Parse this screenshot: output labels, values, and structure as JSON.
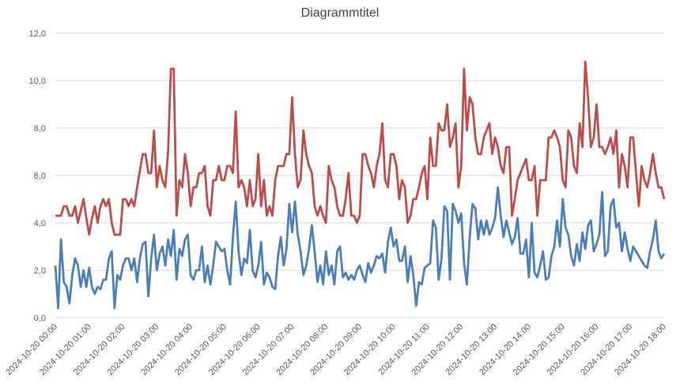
{
  "chart_data": {
    "type": "line",
    "title": "Diagrammtitel",
    "categories": [
      "2024-10-20 00:00",
      null,
      null,
      null,
      null,
      null,
      null,
      null,
      null,
      null,
      null,
      null,
      "2024-10-20 01:00",
      null,
      null,
      null,
      null,
      null,
      null,
      null,
      null,
      null,
      null,
      null,
      "2024-10-20 02:00",
      null,
      null,
      null,
      null,
      null,
      null,
      null,
      null,
      null,
      null,
      null,
      "2024-10-20 03:00",
      null,
      null,
      null,
      null,
      null,
      null,
      null,
      null,
      null,
      null,
      null,
      "2024-10-20 04:00",
      null,
      null,
      null,
      null,
      null,
      null,
      null,
      null,
      null,
      null,
      null,
      "2024-10-20 05:00",
      null,
      null,
      null,
      null,
      null,
      null,
      null,
      null,
      null,
      null,
      null,
      "2024-10-20 06:00",
      null,
      null,
      null,
      null,
      null,
      null,
      null,
      null,
      null,
      null,
      null,
      "2024-10-20 07:00",
      null,
      null,
      null,
      null,
      null,
      null,
      null,
      null,
      null,
      null,
      null,
      "2024-10-20 08:00",
      null,
      null,
      null,
      null,
      null,
      null,
      null,
      null,
      null,
      null,
      null,
      "2024-10-20 09:00",
      null,
      null,
      null,
      null,
      null,
      null,
      null,
      null,
      null,
      null,
      null,
      "2024-10-20 10:00",
      null,
      null,
      null,
      null,
      null,
      null,
      null,
      null,
      null,
      null,
      null,
      "2024-10-20 11:00",
      null,
      null,
      null,
      null,
      null,
      null,
      null,
      null,
      null,
      null,
      null,
      "2024-10-20 12:00",
      null,
      null,
      null,
      null,
      null,
      null,
      null,
      null,
      null,
      null,
      null,
      "2024-10-20 13:00",
      null,
      null,
      null,
      null,
      null,
      null,
      null,
      null,
      null,
      null,
      null,
      "2024-10-20 14:00",
      null,
      null,
      null,
      null,
      null,
      null,
      null,
      null,
      null,
      null,
      null,
      "2024-10-20 15:00",
      null,
      null,
      null,
      null,
      null,
      null,
      null,
      null,
      null,
      null,
      null,
      "2024-10-20 16:00",
      null,
      null,
      null,
      null,
      null,
      null,
      null,
      null,
      null,
      null,
      null,
      "2024-10-20 17:00",
      null,
      null,
      null,
      null,
      null,
      null,
      null,
      null,
      null,
      null,
      null,
      "2024-10-20 18:00"
    ],
    "series": [
      {
        "color": "#be4b48",
        "values": [
          4.3,
          4.3,
          4.3,
          4.7,
          4.7,
          4.3,
          4.3,
          4.7,
          4.0,
          4.5,
          5.0,
          4.2,
          3.5,
          4.2,
          4.7,
          4.0,
          4.7,
          5.0,
          4.7,
          5.0,
          4.0,
          3.5,
          3.5,
          3.5,
          5.0,
          5.0,
          4.7,
          5.0,
          4.7,
          5.5,
          6.2,
          6.9,
          6.9,
          6.1,
          6.1,
          7.9,
          5.5,
          6.4,
          5.8,
          5.5,
          7.0,
          10.5,
          10.5,
          4.3,
          5.8,
          5.5,
          6.9,
          6.1,
          4.7,
          5.5,
          5.5,
          6.1,
          6.1,
          6.4,
          4.7,
          4.3,
          5.8,
          5.8,
          6.4,
          5.8,
          5.8,
          6.4,
          6.4,
          6.1,
          8.7,
          5.5,
          5.8,
          5.5,
          4.7,
          5.8,
          4.7,
          5.0,
          6.9,
          4.7,
          5.8,
          4.3,
          4.7,
          4.3,
          5.8,
          6.4,
          6.4,
          6.4,
          6.9,
          6.9,
          9.3,
          6.9,
          5.5,
          5.8,
          7.9,
          6.9,
          6.4,
          6.1,
          4.7,
          4.3,
          4.7,
          4.3,
          4.0,
          6.4,
          5.8,
          5.5,
          4.7,
          4.3,
          4.3,
          5.0,
          6.1,
          4.3,
          4.3,
          4.0,
          4.3,
          6.9,
          6.9,
          6.4,
          6.1,
          5.5,
          6.4,
          6.9,
          8.2,
          5.8,
          5.5,
          6.9,
          6.9,
          6.4,
          5.0,
          5.8,
          5.5,
          4.0,
          4.3,
          5.0,
          5.0,
          5.5,
          6.1,
          6.4,
          5.0,
          7.6,
          6.4,
          6.4,
          8.2,
          7.9,
          7.9,
          9.0,
          7.2,
          7.6,
          8.2,
          5.5,
          6.4,
          10.5,
          7.9,
          9.3,
          9.0,
          7.6,
          6.9,
          6.9,
          7.6,
          7.9,
          8.2,
          6.9,
          7.6,
          7.2,
          6.4,
          6.1,
          7.2,
          7.2,
          4.3,
          5.0,
          5.8,
          6.1,
          6.4,
          6.7,
          5.8,
          5.8,
          6.4,
          4.3,
          5.8,
          5.8,
          5.8,
          7.6,
          7.6,
          7.9,
          7.6,
          7.2,
          5.8,
          5.5,
          7.9,
          7.6,
          6.4,
          6.1,
          8.2,
          7.2,
          10.8,
          9.3,
          7.2,
          7.6,
          9.0,
          7.2,
          7.2,
          6.9,
          7.2,
          7.6,
          6.9,
          7.9,
          5.5,
          6.9,
          6.4,
          5.5,
          7.6,
          7.6,
          6.1,
          4.7,
          6.4,
          5.8,
          5.5,
          6.1,
          6.9,
          6.1,
          5.5,
          5.5,
          5.0
        ]
      },
      {
        "color": "#4a7ebb",
        "values": [
          2.2,
          0.4,
          3.3,
          1.5,
          1.3,
          0.6,
          1.8,
          2.5,
          2.2,
          1.3,
          2.0,
          1.3,
          2.1,
          1.3,
          1.0,
          1.3,
          1.2,
          1.6,
          1.6,
          2.5,
          2.8,
          0.4,
          1.8,
          1.6,
          2.2,
          2.5,
          2.5,
          2.0,
          2.5,
          1.5,
          2.5,
          3.1,
          3.2,
          0.9,
          2.5,
          3.5,
          2.0,
          2.7,
          3.0,
          2.2,
          3.3,
          2.6,
          3.7,
          1.6,
          2.9,
          2.6,
          3.3,
          3.5,
          1.8,
          1.6,
          2.0,
          2.0,
          3.0,
          1.5,
          2.2,
          1.4,
          2.2,
          3.2,
          3.0,
          2.8,
          2.9,
          2.0,
          1.4,
          3.4,
          4.9,
          2.8,
          1.8,
          2.5,
          2.3,
          3.7,
          2.0,
          1.7,
          2.2,
          3.2,
          1.4,
          1.9,
          1.7,
          1.3,
          1.2,
          2.6,
          3.4,
          2.2,
          2.9,
          4.8,
          3.6,
          4.9,
          3.5,
          2.8,
          1.8,
          2.2,
          2.9,
          3.9,
          2.8,
          1.5,
          2.2,
          1.4,
          2.8,
          1.8,
          2.2,
          1.4,
          2.8,
          3.0,
          1.7,
          1.9,
          1.6,
          1.8,
          1.6,
          2.0,
          2.2,
          1.8,
          1.5,
          2.3,
          1.9,
          2.2,
          2.6,
          2.5,
          2.7,
          1.9,
          3.2,
          3.8,
          3.0,
          3.3,
          2.4,
          2.4,
          3.0,
          1.5,
          2.6,
          1.8,
          0.5,
          1.5,
          1.4,
          2.1,
          2.2,
          2.3,
          4.1,
          3.8,
          1.6,
          2.5,
          4.7,
          4.5,
          1.6,
          4.8,
          4.5,
          4.0,
          4.4,
          2.3,
          1.4,
          3.4,
          4.8,
          4.6,
          3.3,
          4.1,
          3.5,
          4.1,
          3.5,
          3.8,
          4.2,
          5.5,
          4.3,
          3.4,
          4.1,
          3.6,
          3.1,
          3.4,
          4.2,
          2.7,
          2.7,
          3.3,
          1.7,
          4.0,
          1.9,
          1.7,
          2.2,
          2.8,
          1.6,
          1.7,
          2.6,
          3.0,
          4.1,
          3.0,
          5.0,
          3.8,
          3.5,
          2.6,
          2.2,
          3.1,
          2.4,
          3.6,
          2.9,
          3.9,
          4.1,
          2.8,
          3.1,
          3.5,
          5.3,
          2.6,
          2.8,
          4.7,
          5.0,
          3.8,
          4.0,
          2.8,
          3.6,
          2.9,
          2.4,
          3.0,
          2.8,
          2.6,
          2.4,
          2.2,
          2.1,
          2.8,
          3.3,
          4.1,
          2.8,
          2.5,
          2.7
        ]
      }
    ],
    "ylim": [
      0,
      12
    ],
    "yticks": [
      {
        "value": 0,
        "label": "0,0"
      },
      {
        "value": 2,
        "label": "2,0"
      },
      {
        "value": 4,
        "label": "4,0"
      },
      {
        "value": 6,
        "label": "6,0"
      },
      {
        "value": 8,
        "label": "8,0"
      },
      {
        "value": 10,
        "label": "10,0"
      },
      {
        "value": 12,
        "label": "12,0"
      }
    ],
    "grid": true
  }
}
